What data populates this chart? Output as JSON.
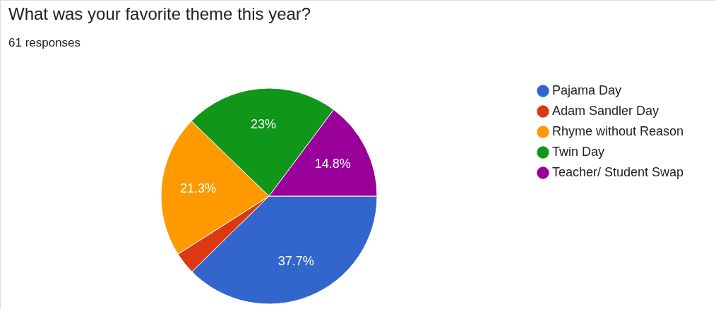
{
  "chart_data": {
    "type": "pie",
    "title": "What was your favorite theme this year?",
    "subtitle": "61 responses",
    "categories": [
      "Pajama Day",
      "Adam Sandler Day",
      "Rhyme without Reason",
      "Twin Day",
      "Teacher/ Student Swap"
    ],
    "values": [
      37.7,
      3.3,
      21.3,
      23,
      14.8
    ],
    "colors": [
      "#3366cc",
      "#dc3912",
      "#ff9900",
      "#109618",
      "#990099"
    ],
    "value_labels": [
      "37.7%",
      null,
      "21.3%",
      "23%",
      "14.8%"
    ],
    "legend": "right"
  }
}
